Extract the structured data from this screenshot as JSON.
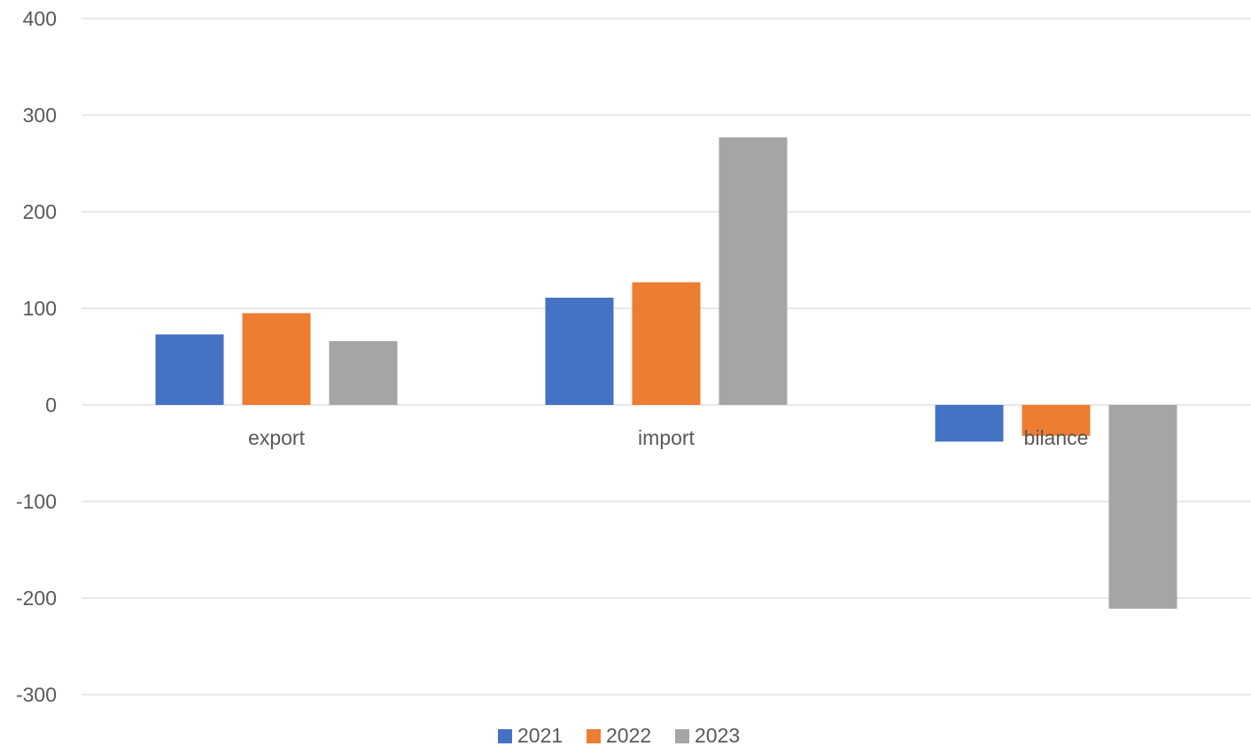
{
  "chart_data": {
    "type": "bar",
    "title": "",
    "xlabel": "",
    "ylabel": "",
    "categories": [
      "export",
      "import",
      "bilance"
    ],
    "series": [
      {
        "name": "2021",
        "color": "#4472c4",
        "values": [
          73,
          111,
          -38
        ]
      },
      {
        "name": "2022",
        "color": "#ed7d31",
        "values": [
          95,
          127,
          -32
        ]
      },
      {
        "name": "2023",
        "color": "#a5a5a5",
        "values": [
          66,
          277,
          -211
        ]
      }
    ],
    "ylim": [
      -300,
      400
    ],
    "yticks": [
      400,
      300,
      200,
      100,
      0,
      -100,
      -200,
      -300
    ],
    "grid": true,
    "legend_position": "bottom"
  }
}
